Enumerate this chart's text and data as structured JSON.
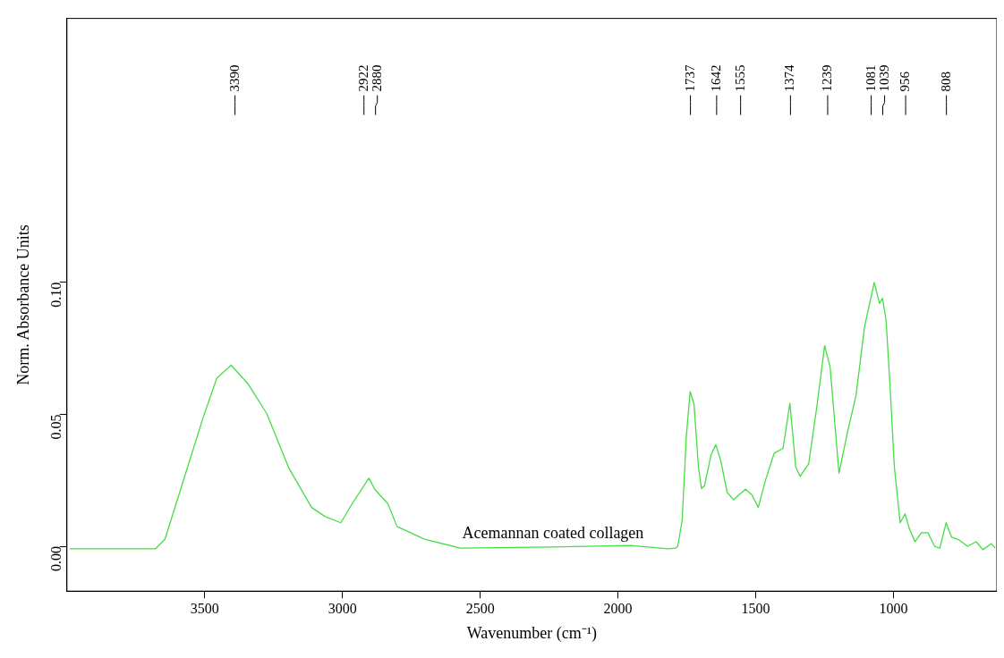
{
  "chart_data": {
    "type": "line",
    "xlabel": "Wavenumber (cm⁻¹)",
    "ylabel": "Norm. Absorbance Units",
    "xlim": [
      4000,
      625
    ],
    "xticks": [
      3500,
      3000,
      2500,
      2000,
      1500,
      1000
    ],
    "ylim": [
      -0.017,
      0.2
    ],
    "yticks": [
      {
        "value": 0,
        "label": "0.00"
      },
      {
        "value": 0.05,
        "label": "0.05"
      },
      {
        "value": 0.1,
        "label": "0.10"
      }
    ],
    "marker": "none",
    "legend": false,
    "series": [
      {
        "color": "#44dd44",
        "x": [
          3990,
          3679,
          3644,
          3571,
          3505,
          3456,
          3404,
          3341,
          3275,
          3194,
          3112,
          3064,
          3006,
          2965,
          2904,
          2883,
          2835,
          2802,
          2702,
          2573,
          2243,
          1955,
          1818,
          1790,
          1783,
          1767,
          1752,
          1738,
          1724,
          1708,
          1697,
          1686,
          1662,
          1645,
          1627,
          1604,
          1580,
          1561,
          1537,
          1514,
          1491,
          1464,
          1433,
          1401,
          1376,
          1355,
          1339,
          1308,
          1277,
          1250,
          1230,
          1198,
          1167,
          1136,
          1105,
          1070,
          1051,
          1040,
          1027,
          1012,
          997,
          976,
          958,
          942,
          922,
          899,
          875,
          851,
          832,
          809,
          789,
          762,
          731,
          700,
          676,
          645,
          631
        ],
        "values": [
          -0.001,
          -0.001,
          0.0027,
          0.027,
          0.049,
          0.0637,
          0.0686,
          0.0613,
          0.0503,
          0.0295,
          0.0147,
          0.0113,
          0.0089,
          0.0161,
          0.0258,
          0.0216,
          0.0161,
          0.0075,
          0.0027,
          -0.0007,
          -0.0003,
          0.0003,
          -0.001,
          -0.0007,
          0,
          0.0099,
          0.0418,
          0.0586,
          0.0538,
          0.0301,
          0.0219,
          0.0229,
          0.0347,
          0.0385,
          0.0324,
          0.0205,
          0.0176,
          0.0195,
          0.0216,
          0.0195,
          0.0147,
          0.0253,
          0.0353,
          0.0371,
          0.0542,
          0.0301,
          0.0265,
          0.0312,
          0.0538,
          0.076,
          0.0678,
          0.0277,
          0.0432,
          0.0572,
          0.0832,
          0.1,
          0.092,
          0.094,
          0.0856,
          0.0596,
          0.0301,
          0.0089,
          0.0123,
          0.0065,
          0.0017,
          0.0051,
          0.0051,
          0,
          -0.0007,
          0.0089,
          0.0034,
          0.0024,
          0,
          0.0017,
          -0.0013,
          0.001,
          -0.0007
        ]
      }
    ],
    "annotations": [
      "Acemannan coated collagen"
    ],
    "ref_lines": [
      {
        "axis": "x",
        "value": 3390,
        "label": "3390"
      },
      {
        "axis": "x",
        "value": 2922,
        "label": "2922"
      },
      {
        "axis": "x",
        "value": 2880,
        "label": "2880"
      },
      {
        "axis": "x",
        "value": 1737,
        "label": "1737"
      },
      {
        "axis": "x",
        "value": 1642,
        "label": "1642"
      },
      {
        "axis": "x",
        "value": 1555,
        "label": "1555"
      },
      {
        "axis": "x",
        "value": 1374,
        "label": "1374"
      },
      {
        "axis": "x",
        "value": 1239,
        "label": "1239"
      },
      {
        "axis": "x",
        "value": 1081,
        "label": "1081"
      },
      {
        "axis": "x",
        "value": 1039,
        "label": "1039"
      },
      {
        "axis": "x",
        "value": 956,
        "label": "956"
      },
      {
        "axis": "x",
        "value": 808,
        "label": "808"
      }
    ]
  }
}
